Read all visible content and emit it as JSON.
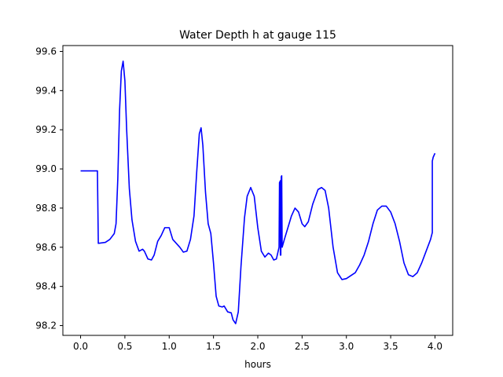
{
  "chart_data": {
    "type": "line",
    "title": "Water Depth h at gauge 115",
    "xlabel": "hours",
    "ylabel": "",
    "xlim": [
      -0.2,
      4.2
    ],
    "ylim": [
      98.15,
      99.63
    ],
    "xticks": [
      0.0,
      0.5,
      1.0,
      1.5,
      2.0,
      2.5,
      3.0,
      3.5,
      4.0
    ],
    "xtick_labels": [
      "0.0",
      "0.5",
      "1.0",
      "1.5",
      "2.0",
      "2.5",
      "3.0",
      "3.5",
      "4.0"
    ],
    "yticks": [
      98.2,
      98.4,
      98.6,
      98.8,
      99.0,
      99.2,
      99.4,
      99.6
    ],
    "ytick_labels": [
      "98.2",
      "98.4",
      "98.6",
      "98.8",
      "99.0",
      "99.2",
      "99.4",
      "99.6"
    ],
    "grid": false,
    "legend": "none",
    "series": [
      {
        "color": "#0000ff",
        "points": [
          [
            0.0,
            98.99
          ],
          [
            0.19,
            98.99
          ],
          [
            0.19,
            98.99
          ],
          [
            0.2,
            98.62
          ],
          [
            0.28,
            98.625
          ],
          [
            0.33,
            98.64
          ],
          [
            0.38,
            98.67
          ],
          [
            0.4,
            98.72
          ],
          [
            0.42,
            98.95
          ],
          [
            0.44,
            99.3
          ],
          [
            0.46,
            99.5
          ],
          [
            0.48,
            99.55
          ],
          [
            0.5,
            99.45
          ],
          [
            0.52,
            99.2
          ],
          [
            0.55,
            98.9
          ],
          [
            0.58,
            98.74
          ],
          [
            0.62,
            98.63
          ],
          [
            0.66,
            98.58
          ],
          [
            0.7,
            98.59
          ],
          [
            0.72,
            98.58
          ],
          [
            0.76,
            98.54
          ],
          [
            0.8,
            98.535
          ],
          [
            0.83,
            98.56
          ],
          [
            0.87,
            98.63
          ],
          [
            0.91,
            98.66
          ],
          [
            0.95,
            98.7
          ],
          [
            1.0,
            98.7
          ],
          [
            1.04,
            98.64
          ],
          [
            1.08,
            98.62
          ],
          [
            1.12,
            98.6
          ],
          [
            1.16,
            98.575
          ],
          [
            1.2,
            98.58
          ],
          [
            1.24,
            98.64
          ],
          [
            1.28,
            98.76
          ],
          [
            1.31,
            98.98
          ],
          [
            1.34,
            99.18
          ],
          [
            1.36,
            99.21
          ],
          [
            1.38,
            99.12
          ],
          [
            1.41,
            98.88
          ],
          [
            1.44,
            98.72
          ],
          [
            1.47,
            98.67
          ],
          [
            1.5,
            98.52
          ],
          [
            1.53,
            98.35
          ],
          [
            1.56,
            98.3
          ],
          [
            1.6,
            98.295
          ],
          [
            1.62,
            98.3
          ],
          [
            1.66,
            98.27
          ],
          [
            1.7,
            98.265
          ],
          [
            1.72,
            98.23
          ],
          [
            1.75,
            98.21
          ],
          [
            1.78,
            98.27
          ],
          [
            1.81,
            98.5
          ],
          [
            1.85,
            98.75
          ],
          [
            1.88,
            98.86
          ],
          [
            1.92,
            98.905
          ],
          [
            1.96,
            98.86
          ],
          [
            2.0,
            98.7
          ],
          [
            2.04,
            98.58
          ],
          [
            2.08,
            98.55
          ],
          [
            2.12,
            98.57
          ],
          [
            2.15,
            98.56
          ],
          [
            2.18,
            98.535
          ],
          [
            2.21,
            98.54
          ],
          [
            2.24,
            98.6
          ],
          [
            2.245,
            98.93
          ],
          [
            2.255,
            98.94
          ],
          [
            2.255,
            98.56
          ],
          [
            2.26,
            98.56
          ],
          [
            2.265,
            98.96
          ],
          [
            2.27,
            98.965
          ],
          [
            2.275,
            98.6
          ],
          [
            2.3,
            98.64
          ],
          [
            2.34,
            98.7
          ],
          [
            2.38,
            98.76
          ],
          [
            2.42,
            98.8
          ],
          [
            2.46,
            98.78
          ],
          [
            2.5,
            98.72
          ],
          [
            2.53,
            98.705
          ],
          [
            2.57,
            98.73
          ],
          [
            2.62,
            98.82
          ],
          [
            2.68,
            98.895
          ],
          [
            2.72,
            98.905
          ],
          [
            2.76,
            98.89
          ],
          [
            2.8,
            98.8
          ],
          [
            2.85,
            98.6
          ],
          [
            2.9,
            98.47
          ],
          [
            2.95,
            98.435
          ],
          [
            3.0,
            98.44
          ],
          [
            3.05,
            98.455
          ],
          [
            3.1,
            98.47
          ],
          [
            3.15,
            98.51
          ],
          [
            3.2,
            98.56
          ],
          [
            3.25,
            98.63
          ],
          [
            3.3,
            98.72
          ],
          [
            3.35,
            98.79
          ],
          [
            3.4,
            98.81
          ],
          [
            3.45,
            98.81
          ],
          [
            3.5,
            98.78
          ],
          [
            3.55,
            98.72
          ],
          [
            3.6,
            98.63
          ],
          [
            3.65,
            98.52
          ],
          [
            3.7,
            98.46
          ],
          [
            3.75,
            98.45
          ],
          [
            3.8,
            98.47
          ],
          [
            3.85,
            98.52
          ],
          [
            3.9,
            98.58
          ],
          [
            3.95,
            98.64
          ],
          [
            3.97,
            98.675
          ],
          [
            3.97,
            99.04
          ],
          [
            3.98,
            99.06
          ],
          [
            4.0,
            99.08
          ]
        ]
      }
    ]
  }
}
